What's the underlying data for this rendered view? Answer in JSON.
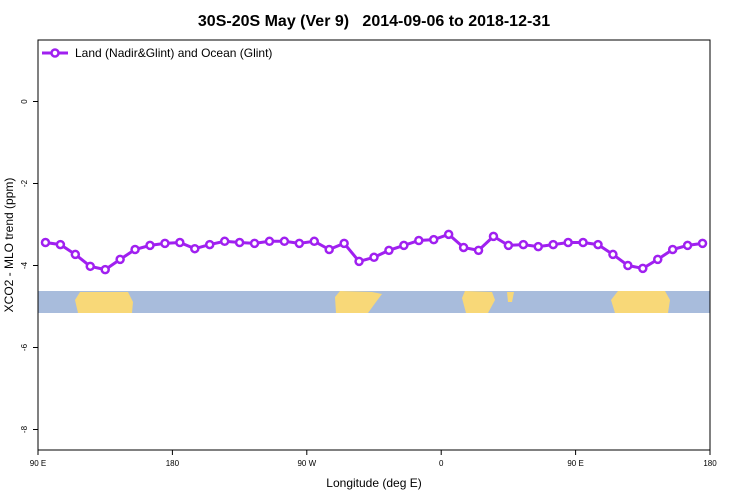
{
  "chart_data": {
    "type": "line",
    "title": "30S-20S May (Ver 9)   2014-09-06 to 2018-12-31",
    "x_label": "Longitude (deg E)",
    "y_label": "XCO2 - MLO trend (ppm)",
    "x": [
      95,
      105,
      115,
      125,
      135,
      145,
      155,
      165,
      175,
      185,
      195,
      205,
      215,
      225,
      235,
      245,
      255,
      265,
      275,
      285,
      295,
      305,
      315,
      325,
      335,
      345,
      355,
      365,
      375,
      385,
      395,
      405,
      415,
      425,
      435,
      445,
      455,
      465,
      475,
      485,
      495,
      505,
      515,
      525,
      535
    ],
    "series": [
      {
        "name": "Land (Nadir&Glint) and Ocean (Glint)",
        "color": "#a020f0",
        "values": [
          -3.44,
          -3.49,
          -3.73,
          -4.02,
          -4.1,
          -3.85,
          -3.61,
          -3.51,
          -3.46,
          -3.44,
          -3.59,
          -3.49,
          -3.41,
          -3.44,
          -3.46,
          -3.41,
          -3.41,
          -3.46,
          -3.41,
          -3.61,
          -3.46,
          -3.9,
          -3.8,
          -3.63,
          -3.51,
          -3.39,
          -3.37,
          -3.24,
          -3.56,
          -3.63,
          -3.29,
          -3.51,
          -3.49,
          -3.54,
          -3.49,
          -3.44,
          -3.44,
          -3.49,
          -3.73,
          -4.0,
          -4.07,
          -3.85,
          -3.61,
          -3.51,
          -3.46
        ]
      }
    ],
    "xlim": [
      90,
      540
    ],
    "xticks": [
      {
        "value": 90,
        "label": "90 E"
      },
      180,
      {
        "value": 270,
        "label": "90 W"
      },
      {
        "value": 360,
        "label": "0"
      },
      {
        "value": 450,
        "label": "90 E"
      },
      {
        "value": 540,
        "label": "180"
      }
    ],
    "ylim": [
      -8.5,
      1.5
    ],
    "yticks": [
      0,
      -2,
      -4,
      -6,
      -8
    ],
    "legend": "top-left"
  }
}
